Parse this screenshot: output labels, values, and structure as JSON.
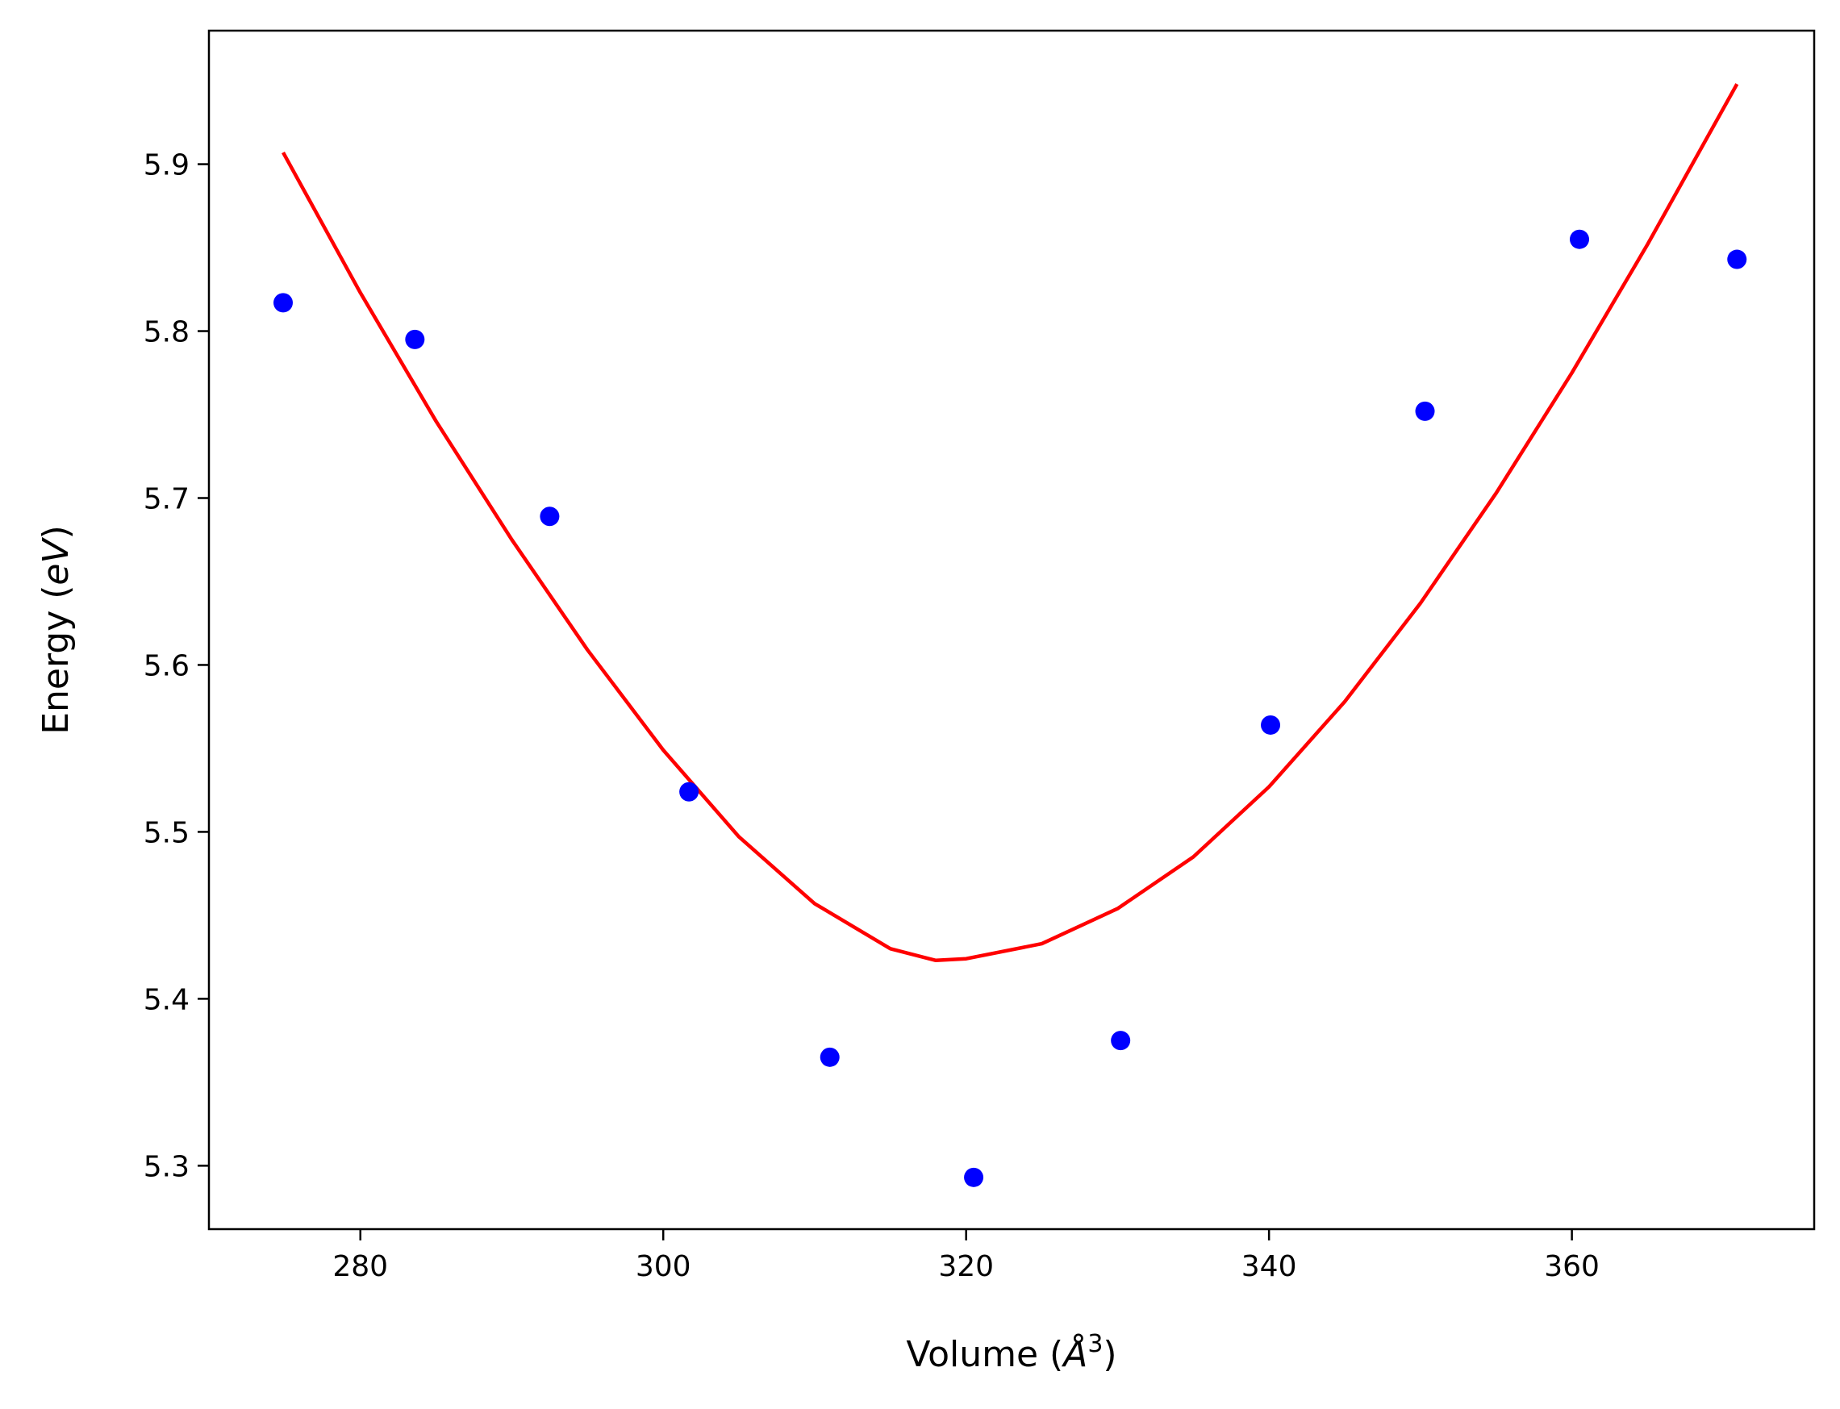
{
  "chart_data": {
    "type": "scatter",
    "xlabel": "Volume",
    "xlabel_unit": "Å",
    "xlabel_unit_power": "3",
    "ylabel": "Energy",
    "ylabel_unit": "eV",
    "xlim": [
      270,
      376
    ],
    "ylim": [
      5.262,
      5.98
    ],
    "x_ticks": [
      280,
      300,
      320,
      340,
      360
    ],
    "y_ticks": [
      5.3,
      5.4,
      5.5,
      5.6,
      5.7,
      5.8,
      5.9
    ],
    "grid": false,
    "legend": "none",
    "series": [
      {
        "kind": "points",
        "color": "#0000ff",
        "x": [
          274.9,
          283.6,
          292.5,
          301.7,
          311.0,
          320.5,
          330.2,
          340.1,
          350.3,
          360.5,
          370.9
        ],
        "y": [
          5.817,
          5.795,
          5.689,
          5.524,
          5.365,
          5.293,
          5.375,
          5.564,
          5.752,
          5.855,
          5.843
        ]
      },
      {
        "kind": "fit-curve",
        "color": "#ff0000",
        "x": [
          274.9,
          280,
          285,
          290,
          295,
          300,
          305,
          310,
          315,
          318,
          320,
          325,
          330,
          335,
          340,
          345,
          350,
          355,
          360,
          365,
          370.9
        ],
        "y": [
          5.907,
          5.823,
          5.746,
          5.675,
          5.609,
          5.549,
          5.497,
          5.457,
          5.43,
          5.423,
          5.424,
          5.433,
          5.454,
          5.485,
          5.527,
          5.578,
          5.637,
          5.703,
          5.775,
          5.852,
          5.948
        ]
      }
    ]
  }
}
